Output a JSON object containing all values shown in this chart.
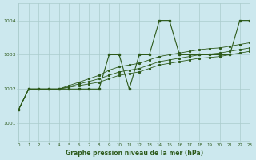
{
  "hours": [
    0,
    1,
    2,
    3,
    4,
    5,
    6,
    7,
    8,
    9,
    10,
    11,
    12,
    13,
    14,
    15,
    16,
    17,
    18,
    19,
    20,
    21,
    22,
    23
  ],
  "line_jagged": [
    1001.4,
    1002.0,
    1002.0,
    1002.0,
    1002.0,
    1002.0,
    1002.0,
    1002.0,
    1002.0,
    1003.0,
    1003.0,
    1002.0,
    1003.0,
    1003.0,
    1004.0,
    1004.0,
    1003.0,
    1003.0,
    1003.0,
    1003.0,
    1003.0,
    1003.0,
    1004.0,
    1004.0
  ],
  "line_trend1": [
    1001.4,
    1002.0,
    1002.0,
    1002.0,
    1002.0,
    1002.05,
    1002.1,
    1002.15,
    1002.2,
    1002.3,
    1002.4,
    1002.45,
    1002.5,
    1002.6,
    1002.7,
    1002.75,
    1002.8,
    1002.85,
    1002.9,
    1002.92,
    1002.95,
    1003.0,
    1003.05,
    1003.1
  ],
  "line_trend2": [
    1001.4,
    1002.0,
    1002.0,
    1002.0,
    1002.0,
    1002.07,
    1002.15,
    1002.22,
    1002.3,
    1002.4,
    1002.5,
    1002.55,
    1002.6,
    1002.7,
    1002.8,
    1002.85,
    1002.9,
    1002.95,
    1003.0,
    1003.02,
    1003.05,
    1003.1,
    1003.15,
    1003.2
  ],
  "line_trend3": [
    1001.4,
    1002.0,
    1002.0,
    1002.0,
    1002.0,
    1002.1,
    1002.2,
    1002.3,
    1002.4,
    1002.55,
    1002.65,
    1002.7,
    1002.75,
    1002.85,
    1002.95,
    1003.0,
    1003.05,
    1003.1,
    1003.15,
    1003.18,
    1003.2,
    1003.25,
    1003.3,
    1003.35
  ],
  "background_color": "#cce8ee",
  "line_color": "#2d5a1b",
  "grid_color": "#aacccc",
  "ylabel_values": [
    1001,
    1002,
    1003,
    1004
  ],
  "xlabel_label": "Graphe pression niveau de la mer (hPa)",
  "ylim": [
    1000.5,
    1004.5
  ],
  "xlim": [
    0,
    23
  ]
}
